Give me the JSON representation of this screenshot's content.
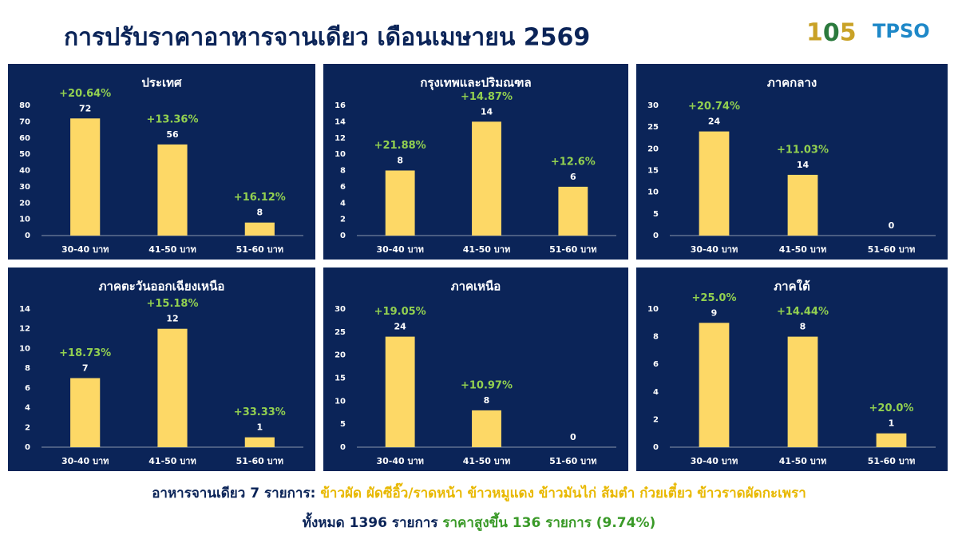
{
  "header": {
    "title": "การปรับราคาอาหารจานเดียว เดือนเมษายน 2569",
    "logo_text": "TPSO"
  },
  "footer": {
    "line1_label": "อาหารจานเดียว 7 รายการ:",
    "line1_items": "ข้าวผัด ผัดซีอิ๊ว/ราดหน้า ข้าวหมูแดง ข้าวมันไก่ ส้มตำ ก๋วยเตี๋ยว ข้าวราดผัดกะเพรา",
    "line2_total": "ทั้งหมด 1396 รายการ",
    "line2_rise": "ราคาสูงขึ้น 136 รายการ (9.74%)"
  },
  "chart_data": [
    {
      "type": "bar",
      "title": "ประเทศ",
      "categories": [
        "30-40 บาท",
        "41-50 บาท",
        "51-60 บาท"
      ],
      "values": [
        72,
        56,
        8
      ],
      "annotations": [
        "+20.64%",
        "+13.36%",
        "+16.12%"
      ],
      "color": "#fdd866",
      "annotation_color": "#92d050",
      "ylim": [
        0,
        80
      ],
      "yticks": [
        0,
        10,
        20,
        30,
        40,
        50,
        60,
        70,
        80
      ],
      "grid": false
    },
    {
      "type": "bar",
      "title": "กรุงเทพและปริมณฑล",
      "categories": [
        "30-40 บาท",
        "41-50 บาท",
        "51-60 บาท"
      ],
      "values": [
        8,
        14,
        6
      ],
      "annotations": [
        "+21.88%",
        "+14.87%",
        "+12.6%"
      ],
      "color": "#fdd866",
      "annotation_color": "#92d050",
      "ylim": [
        0,
        16
      ],
      "yticks": [
        0,
        2,
        4,
        6,
        8,
        10,
        12,
        14,
        16
      ],
      "grid": false
    },
    {
      "type": "bar",
      "title": "ภาคกลาง",
      "categories": [
        "30-40 บาท",
        "41-50 บาท",
        "51-60 บาท"
      ],
      "values": [
        24,
        14,
        0
      ],
      "annotations": [
        "+20.74%",
        "+11.03%",
        null
      ],
      "color": "#fdd866",
      "annotation_color": "#92d050",
      "ylim": [
        0,
        30
      ],
      "yticks": [
        0,
        5,
        10,
        15,
        20,
        25,
        30
      ],
      "grid": false
    },
    {
      "type": "bar",
      "title": "ภาคตะวันออกเฉียงเหนือ",
      "categories": [
        "30-40 บาท",
        "41-50 บาท",
        "51-60 บาท"
      ],
      "values": [
        7,
        12,
        1
      ],
      "annotations": [
        "+18.73%",
        "+15.18%",
        "+33.33%"
      ],
      "color": "#fdd866",
      "annotation_color": "#92d050",
      "ylim": [
        0,
        14
      ],
      "yticks": [
        0,
        2,
        4,
        6,
        8,
        10,
        12,
        14
      ],
      "grid": false
    },
    {
      "type": "bar",
      "title": "ภาคเหนือ",
      "categories": [
        "30-40 บาท",
        "41-50 บาท",
        "51-60 บาท"
      ],
      "values": [
        24,
        8,
        0
      ],
      "annotations": [
        "+19.05%",
        "+10.97%",
        null
      ],
      "color": "#fdd866",
      "annotation_color": "#92d050",
      "ylim": [
        0,
        30
      ],
      "yticks": [
        0,
        5,
        10,
        15,
        20,
        25,
        30
      ],
      "grid": false
    },
    {
      "type": "bar",
      "title": "ภาคใต้",
      "categories": [
        "30-40 บาท",
        "41-50 บาท",
        "51-60 บาท"
      ],
      "values": [
        9,
        8,
        1
      ],
      "annotations": [
        "+25.0%",
        "+14.44%",
        "+20.0%"
      ],
      "color": "#fdd866",
      "annotation_color": "#92d050",
      "ylim": [
        0,
        10
      ],
      "yticks": [
        0,
        2,
        4,
        6,
        8,
        10
      ],
      "grid": false
    }
  ]
}
